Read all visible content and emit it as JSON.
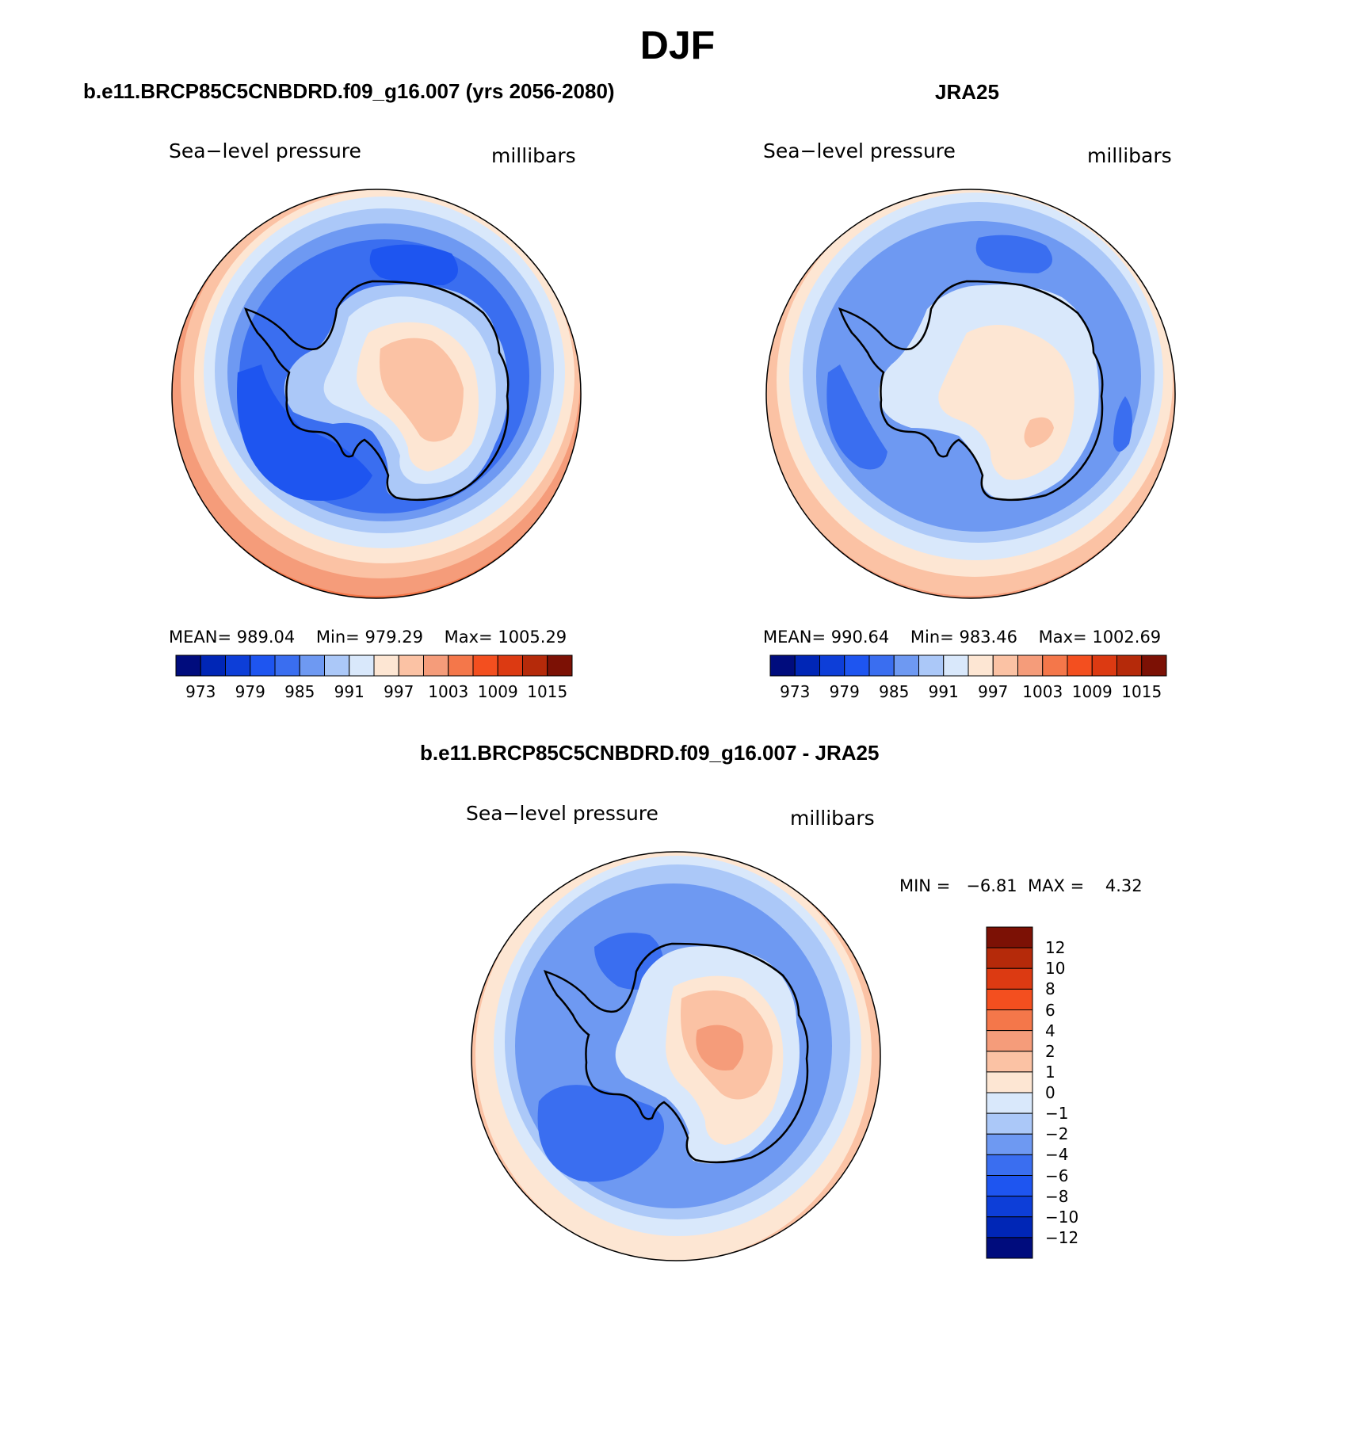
{
  "figure": {
    "title": "DJF"
  },
  "palette": {
    "abs": [
      "#000c7d",
      "#0026b6",
      "#0d3ed8",
      "#1e55f0",
      "#3a6ef0",
      "#6e99f2",
      "#abc8f8",
      "#d9e8fb",
      "#fde6d3",
      "#fbc2a4",
      "#f59c7a",
      "#f4774a",
      "#f34f1f",
      "#dc3a12",
      "#b52a0a",
      "#7c1105"
    ],
    "diff": [
      "#000c7d",
      "#0026b6",
      "#0d3ed8",
      "#1e55f0",
      "#3a6ef0",
      "#6e99f2",
      "#abc8f8",
      "#d9e8fb",
      "#fde6d3",
      "#fbc2a4",
      "#f59c7a",
      "#f4774a",
      "#f34f1f",
      "#dc3a12",
      "#b52a0a",
      "#7c1105"
    ]
  },
  "panels": [
    {
      "title": "b.e11.BRCP85C5CNBDRD.f09_g16.007 (yrs 2056-2080)",
      "left_label": "Sea−level pressure",
      "right_label": "millibars",
      "stats": {
        "mean": "MEAN= 989.04",
        "min": "Min= 979.29",
        "max": "Max= 1005.29"
      },
      "colorbar_labels": [
        "973",
        "979",
        "985",
        "991",
        "997",
        "1003",
        "1009",
        "1015"
      ],
      "map_fields": [
        {
          "level": 9,
          "shape": "ring"
        },
        {
          "level": 8,
          "shape": "ring"
        },
        {
          "level": 7,
          "shape": "ring"
        },
        {
          "level": 6,
          "shape": "ring"
        },
        {
          "level": 5,
          "shape": "ring"
        },
        {
          "level": 4,
          "shape": "ring"
        },
        {
          "level": 3,
          "shape": "blob"
        },
        {
          "level": 2,
          "shape": "blob"
        }
      ]
    },
    {
      "title": "JRA25",
      "left_label": "Sea−level pressure",
      "right_label": "millibars",
      "stats": {
        "mean": "MEAN= 990.64",
        "min": "Min= 983.46",
        "max": "Max= 1002.69"
      },
      "colorbar_labels": [
        "973",
        "979",
        "985",
        "991",
        "997",
        "1003",
        "1009",
        "1015"
      ]
    },
    {
      "title": "b.e11.BRCP85C5CNBDRD.f09_g16.007 - JRA25",
      "left_label": "Sea−level pressure",
      "right_label": "millibars",
      "stats": {
        "minmax": "MIN =   −6.81  MAX =    4.32"
      },
      "colorbar_labels": [
        "12",
        "10",
        "8",
        "6",
        "4",
        "2",
        "1",
        "0",
        "−1",
        "−2",
        "−4",
        "−6",
        "−8",
        "−10",
        "−12"
      ]
    }
  ]
}
